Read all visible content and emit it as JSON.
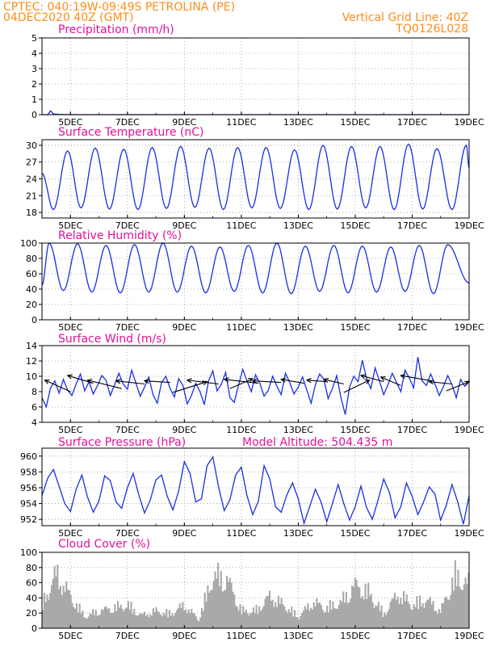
{
  "header": {
    "line1_left": "CPTEC:  040:19W-09:49S  PETROLINA (PE)",
    "line2_left": "04DEC2020 40Z (GMT)",
    "line1_right": "Vertical Grid Line: 40Z",
    "line2_right": "TQ0126L028"
  },
  "colors": {
    "header": "#ff8c1a",
    "title": "#e0119a",
    "line": "#1a2fe0",
    "cloud": "#a9a9a9",
    "wind_arrow": "#000000"
  },
  "x_axis": {
    "start_day": 4.0,
    "end_day": 19.0,
    "tick_days": [
      5,
      7,
      9,
      11,
      13,
      15,
      17,
      19
    ],
    "tick_labels": [
      "5DEC",
      "7DEC",
      "9DEC",
      "11DEC",
      "13DEC",
      "15DEC",
      "17DEC",
      "19DEC"
    ]
  },
  "chart_data": [
    {
      "id": "precip",
      "type": "line",
      "title": "Precipitation (mm/h)",
      "ylim": [
        0,
        5
      ],
      "yticks": [
        0,
        1,
        2,
        3,
        4,
        5
      ],
      "x": [
        4.0,
        4.2,
        4.3,
        4.4,
        4.6,
        5.0,
        6.0,
        8.0,
        10.0,
        12.0,
        14.0,
        16.0,
        18.0,
        19.0
      ],
      "values": [
        0,
        0,
        0.25,
        0.05,
        0.02,
        0,
        0,
        0,
        0,
        0,
        0,
        0,
        0,
        0
      ]
    },
    {
      "id": "temp",
      "type": "line",
      "title": "Surface Temperature (nC)",
      "ylim": [
        17,
        31
      ],
      "yticks": [
        18,
        21,
        24,
        27,
        30
      ],
      "peak_times": [
        4.9,
        5.87,
        6.87,
        7.87,
        8.87,
        9.87,
        10.87,
        11.87,
        12.87,
        13.87,
        14.87,
        15.87,
        16.87,
        17.87,
        18.9
      ],
      "max_values": [
        29.0,
        29.5,
        29.3,
        29.6,
        29.8,
        29.5,
        29.6,
        29.6,
        29.2,
        30.0,
        29.8,
        29.8,
        30.2,
        29.4,
        30.0
      ],
      "min_values": [
        18.5,
        18.8,
        18.6,
        18.5,
        18.7,
        18.9,
        18.5,
        18.8,
        18.7,
        18.5,
        18.6,
        18.8,
        18.5,
        18.6,
        18.5
      ],
      "start_value": 25.0,
      "end_value": 26.0
    },
    {
      "id": "rh",
      "type": "line",
      "title": "Relative Humidity (%)",
      "ylim": [
        0,
        100
      ],
      "yticks": [
        0,
        20,
        40,
        60,
        80,
        100
      ],
      "peak_times": [
        4.25,
        5.25,
        6.25,
        7.25,
        8.25,
        9.25,
        10.25,
        11.25,
        12.25,
        13.25,
        14.25,
        15.25,
        16.25,
        17.25,
        18.25
      ],
      "max_values": [
        100,
        99,
        97,
        98,
        100,
        96,
        95,
        97,
        100,
        96,
        97,
        96,
        95,
        97,
        98
      ],
      "min_values": [
        37,
        38,
        36,
        35,
        36,
        36,
        35,
        37,
        35,
        34,
        37,
        35,
        36,
        37,
        34
      ],
      "start_value": 45,
      "end_value": 48
    },
    {
      "id": "wind",
      "type": "line",
      "title": "Surface Wind (m/s)",
      "ylim": [
        4,
        14
      ],
      "yticks": [
        4,
        6,
        8,
        10,
        12,
        14
      ],
      "x": [
        4.0,
        4.15,
        4.3,
        4.45,
        4.6,
        4.75,
        4.9,
        5.05,
        5.2,
        5.35,
        5.5,
        5.65,
        5.8,
        5.95,
        6.1,
        6.25,
        6.4,
        6.55,
        6.7,
        6.85,
        7.0,
        7.15,
        7.3,
        7.45,
        7.6,
        7.75,
        7.9,
        8.05,
        8.2,
        8.35,
        8.5,
        8.65,
        8.8,
        8.95,
        9.1,
        9.25,
        9.4,
        9.55,
        9.7,
        9.85,
        10.0,
        10.15,
        10.3,
        10.45,
        10.6,
        10.75,
        10.9,
        11.05,
        11.2,
        11.35,
        11.5,
        11.65,
        11.8,
        11.95,
        12.1,
        12.25,
        12.4,
        12.55,
        12.7,
        12.85,
        13.0,
        13.15,
        13.3,
        13.45,
        13.6,
        13.75,
        13.9,
        14.05,
        14.2,
        14.35,
        14.5,
        14.65,
        14.8,
        14.95,
        15.1,
        15.25,
        15.4,
        15.55,
        15.7,
        15.85,
        16.0,
        16.15,
        16.3,
        16.45,
        16.6,
        16.75,
        16.9,
        17.05,
        17.2,
        17.35,
        17.5,
        17.65,
        17.8,
        17.95,
        18.1,
        18.25,
        18.4,
        18.55,
        18.7,
        18.85,
        19.0
      ],
      "values": [
        7.2,
        6.0,
        8.5,
        9.4,
        7.8,
        9.6,
        8.2,
        7.5,
        9.0,
        10.3,
        8.1,
        9.3,
        7.7,
        8.8,
        10.1,
        9.5,
        7.5,
        8.9,
        10.4,
        9.0,
        8.3,
        10.8,
        9.1,
        7.4,
        8.6,
        9.9,
        7.6,
        6.5,
        9.2,
        10.0,
        8.4,
        7.3,
        9.7,
        8.8,
        6.4,
        7.5,
        9.1,
        8.0,
        6.3,
        9.4,
        10.7,
        8.1,
        9.0,
        10.5,
        7.2,
        6.6,
        8.8,
        10.9,
        9.4,
        8.0,
        10.2,
        9.1,
        7.4,
        8.2,
        10.0,
        8.7,
        7.6,
        10.4,
        9.2,
        7.7,
        8.6,
        9.9,
        8.2,
        6.5,
        8.9,
        10.3,
        9.6,
        7.1,
        8.4,
        10.1,
        7.2,
        5.0,
        8.6,
        10.0,
        9.3,
        12.1,
        9.7,
        8.4,
        11.1,
        9.4,
        7.6,
        8.9,
        10.4,
        9.2,
        8.0,
        10.8,
        9.8,
        8.5,
        12.5,
        9.4,
        8.8,
        10.3,
        9.0,
        7.5,
        8.7,
        10.1,
        8.9,
        7.2,
        9.6,
        8.7,
        9.5
      ],
      "arrows": [
        {
          "x1": 5.0,
          "y1": 8.0,
          "x2": 4.1,
          "y2": 9.5
        },
        {
          "x1": 5.8,
          "y1": 9.1,
          "x2": 4.9,
          "y2": 10.1
        },
        {
          "x1": 6.8,
          "y1": 8.4,
          "x2": 5.6,
          "y2": 9.5
        },
        {
          "x1": 7.6,
          "y1": 9.0,
          "x2": 6.6,
          "y2": 9.4
        },
        {
          "x1": 8.5,
          "y1": 9.2,
          "x2": 7.6,
          "y2": 9.4
        },
        {
          "x1": 8.6,
          "y1": 7.9,
          "x2": 9.8,
          "y2": 9.3
        },
        {
          "x1": 10.2,
          "y1": 9.0,
          "x2": 9.1,
          "y2": 9.5
        },
        {
          "x1": 10.6,
          "y1": 8.4,
          "x2": 11.4,
          "y2": 9.7
        },
        {
          "x1": 11.6,
          "y1": 9.1,
          "x2": 10.4,
          "y2": 9.6
        },
        {
          "x1": 12.4,
          "y1": 9.2,
          "x2": 11.4,
          "y2": 9.4
        },
        {
          "x1": 13.2,
          "y1": 9.1,
          "x2": 12.4,
          "y2": 9.6
        },
        {
          "x1": 14.0,
          "y1": 9.3,
          "x2": 13.3,
          "y2": 9.5
        },
        {
          "x1": 14.6,
          "y1": 9.0,
          "x2": 13.9,
          "y2": 9.6
        },
        {
          "x1": 14.6,
          "y1": 7.9,
          "x2": 15.5,
          "y2": 9.5
        },
        {
          "x1": 16.0,
          "y1": 9.3,
          "x2": 15.2,
          "y2": 10.1
        },
        {
          "x1": 16.6,
          "y1": 8.8,
          "x2": 15.9,
          "y2": 9.9
        },
        {
          "x1": 17.7,
          "y1": 9.4,
          "x2": 16.6,
          "y2": 10.1
        },
        {
          "x1": 18.4,
          "y1": 9.0,
          "x2": 17.6,
          "y2": 9.3
        },
        {
          "x1": 18.2,
          "y1": 8.1,
          "x2": 19.0,
          "y2": 9.3
        }
      ]
    },
    {
      "id": "pressure",
      "type": "line",
      "title": "Surface Pressure (hPa)",
      "annotation": "Model Altitude: 504.435 m",
      "ylim": [
        951.2,
        961
      ],
      "yticks": [
        952,
        954,
        956,
        958,
        960
      ],
      "x": [
        4.0,
        4.2,
        4.4,
        4.6,
        4.8,
        5.0,
        5.2,
        5.4,
        5.6,
        5.8,
        6.0,
        6.2,
        6.4,
        6.6,
        6.8,
        7.0,
        7.2,
        7.4,
        7.6,
        7.8,
        8.0,
        8.2,
        8.4,
        8.6,
        8.8,
        9.0,
        9.2,
        9.4,
        9.6,
        9.8,
        10.0,
        10.2,
        10.4,
        10.6,
        10.8,
        11.0,
        11.2,
        11.4,
        11.6,
        11.8,
        12.0,
        12.2,
        12.4,
        12.6,
        12.8,
        13.0,
        13.2,
        13.4,
        13.6,
        13.8,
        14.0,
        14.2,
        14.4,
        14.6,
        14.8,
        15.0,
        15.2,
        15.4,
        15.6,
        15.8,
        16.0,
        16.2,
        16.4,
        16.6,
        16.8,
        17.0,
        17.2,
        17.4,
        17.6,
        17.8,
        18.0,
        18.2,
        18.4,
        18.6,
        18.8,
        19.0
      ],
      "values": [
        955.0,
        957.2,
        958.3,
        956.2,
        954.0,
        953.0,
        955.8,
        957.6,
        954.8,
        952.9,
        954.3,
        957.5,
        956.9,
        954.2,
        953.4,
        956.0,
        957.8,
        955.1,
        952.8,
        954.4,
        957.0,
        957.6,
        954.9,
        953.2,
        955.6,
        959.3,
        957.8,
        954.2,
        954.6,
        958.8,
        959.9,
        956.1,
        953.1,
        954.5,
        957.6,
        958.6,
        955.0,
        952.6,
        954.3,
        958.8,
        957.1,
        953.6,
        952.9,
        955.1,
        956.6,
        954.6,
        951.5,
        953.6,
        955.8,
        954.2,
        951.7,
        954.0,
        956.4,
        954.0,
        951.9,
        953.6,
        956.2,
        953.5,
        952.0,
        954.4,
        957.1,
        955.4,
        952.2,
        953.6,
        956.6,
        954.9,
        952.6,
        954.2,
        956.1,
        955.2,
        951.9,
        953.8,
        956.4,
        954.2,
        951.4,
        955.0
      ]
    },
    {
      "id": "cloud",
      "type": "bar",
      "title": "Cloud Cover (%)",
      "ylim": [
        0,
        100
      ],
      "yticks": [
        0,
        20,
        40,
        60,
        80,
        100
      ],
      "x": [
        4.0,
        4.5,
        5.0,
        5.5,
        6.0,
        6.5,
        7.0,
        7.5,
        8.0,
        8.5,
        9.0,
        9.5,
        10.0,
        10.5,
        11.0,
        11.5,
        12.0,
        12.5,
        13.0,
        13.5,
        14.0,
        14.5,
        15.0,
        15.5,
        16.0,
        16.5,
        17.0,
        17.5,
        18.0,
        18.5,
        19.0
      ],
      "values": [
        40,
        95,
        55,
        20,
        30,
        35,
        40,
        22,
        30,
        25,
        40,
        15,
        90,
        85,
        30,
        30,
        55,
        40,
        20,
        45,
        35,
        45,
        75,
        60,
        25,
        60,
        40,
        50,
        30,
        90,
        75
      ]
    }
  ]
}
